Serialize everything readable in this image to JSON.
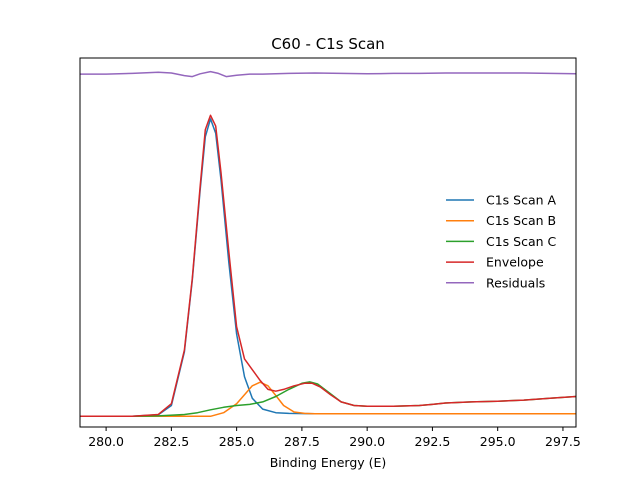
{
  "chart_data": {
    "type": "line",
    "title": "C60 - C1s Scan",
    "xlabel": "Binding Energy (E)",
    "ylabel": "",
    "xlim": [
      279.0,
      298.0
    ],
    "ylim": [
      -0.03,
      1.0
    ],
    "x_ticks": [
      280.0,
      282.5,
      285.0,
      287.5,
      290.0,
      292.5,
      295.0,
      297.5
    ],
    "x_tick_labels": [
      "280.0",
      "282.5",
      "285.0",
      "287.5",
      "290.0",
      "292.5",
      "295.0",
      "297.5"
    ],
    "y_ticks_visible": false,
    "grid": false,
    "legend_position": "center-right",
    "series": [
      {
        "name": "C1s Scan A",
        "color": "#1f77b4",
        "x": [
          279.0,
          281.0,
          282.0,
          282.5,
          283.0,
          283.3,
          283.6,
          283.8,
          284.0,
          284.2,
          284.4,
          284.7,
          285.0,
          285.3,
          285.6,
          286.0,
          286.5,
          287.0,
          288.0,
          290.0,
          292.0,
          294.0,
          296.0,
          298.0
        ],
        "y": [
          0.0,
          0.0,
          0.004,
          0.03,
          0.18,
          0.38,
          0.63,
          0.78,
          0.83,
          0.79,
          0.66,
          0.43,
          0.23,
          0.11,
          0.05,
          0.02,
          0.01,
          0.008,
          0.007,
          0.007,
          0.007,
          0.007,
          0.007,
          0.007
        ]
      },
      {
        "name": "C1s Scan B",
        "color": "#ff7f0e",
        "x": [
          279.0,
          284.0,
          284.5,
          285.0,
          285.3,
          285.6,
          285.9,
          286.2,
          286.5,
          286.8,
          287.2,
          287.6,
          288.0,
          290.0,
          294.0,
          298.0
        ],
        "y": [
          0.0,
          0.0,
          0.01,
          0.035,
          0.06,
          0.085,
          0.095,
          0.085,
          0.058,
          0.03,
          0.012,
          0.008,
          0.007,
          0.007,
          0.007,
          0.007
        ]
      },
      {
        "name": "C1s Scan C",
        "color": "#2ca02c",
        "x": [
          279.0,
          281.0,
          282.0,
          283.0,
          283.5,
          284.0,
          284.5,
          285.0,
          285.5,
          286.0,
          286.5,
          287.0,
          287.5,
          287.8,
          288.1,
          288.5,
          289.0,
          289.5,
          290.0,
          291.0,
          292.0,
          292.5,
          293.0,
          294.0,
          295.0,
          296.0,
          297.0,
          298.0
        ],
        "y": [
          0.0,
          0.0,
          0.001,
          0.005,
          0.01,
          0.018,
          0.025,
          0.03,
          0.033,
          0.04,
          0.055,
          0.075,
          0.092,
          0.096,
          0.09,
          0.068,
          0.04,
          0.03,
          0.028,
          0.028,
          0.03,
          0.033,
          0.037,
          0.04,
          0.042,
          0.045,
          0.05,
          0.055
        ]
      },
      {
        "name": "Envelope",
        "color": "#d62728",
        "x": [
          279.0,
          281.0,
          282.0,
          282.5,
          283.0,
          283.3,
          283.6,
          283.8,
          284.0,
          284.2,
          284.4,
          284.7,
          285.0,
          285.3,
          285.6,
          285.9,
          286.2,
          286.5,
          286.8,
          287.2,
          287.6,
          287.9,
          288.2,
          288.6,
          289.0,
          289.5,
          290.0,
          291.0,
          292.0,
          292.5,
          293.0,
          294.0,
          295.0,
          296.0,
          297.0,
          298.0
        ],
        "y": [
          0.0,
          0.0,
          0.005,
          0.035,
          0.185,
          0.385,
          0.64,
          0.8,
          0.84,
          0.81,
          0.68,
          0.46,
          0.25,
          0.16,
          0.13,
          0.1,
          0.075,
          0.07,
          0.075,
          0.085,
          0.092,
          0.092,
          0.082,
          0.06,
          0.04,
          0.03,
          0.028,
          0.028,
          0.03,
          0.033,
          0.037,
          0.04,
          0.042,
          0.045,
          0.05,
          0.055
        ]
      },
      {
        "name": "Residuals",
        "color": "#9467bd",
        "x": [
          279.0,
          280.0,
          281.0,
          282.0,
          282.5,
          283.0,
          283.3,
          283.6,
          284.0,
          284.3,
          284.6,
          285.0,
          285.5,
          286.0,
          287.0,
          288.0,
          289.0,
          290.0,
          291.0,
          292.0,
          293.0,
          294.0,
          295.0,
          296.0,
          297.0,
          298.0
        ],
        "y": [
          0.955,
          0.955,
          0.957,
          0.96,
          0.958,
          0.951,
          0.948,
          0.956,
          0.962,
          0.957,
          0.948,
          0.952,
          0.955,
          0.955,
          0.957,
          0.958,
          0.957,
          0.956,
          0.957,
          0.957,
          0.958,
          0.958,
          0.958,
          0.958,
          0.957,
          0.956
        ]
      }
    ]
  }
}
